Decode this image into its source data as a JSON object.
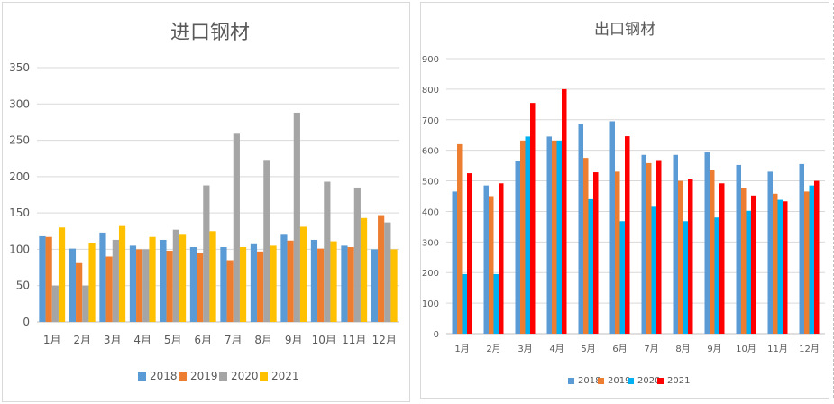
{
  "colors": {
    "2018": "#5b9bd5",
    "2019": "#ed7d31",
    "2020_left": "#a5a5a5",
    "2021_left": "#ffc000",
    "2020_right": "#00b0f0",
    "2021_right": "#ff0000"
  },
  "chart_data": [
    {
      "type": "bar",
      "title": "进口钢材",
      "categories": [
        "1月",
        "2月",
        "3月",
        "4月",
        "5月",
        "6月",
        "7月",
        "8月",
        "9月",
        "10月",
        "11月",
        "12月"
      ],
      "ylim": [
        0,
        350
      ],
      "yticks": [
        "0",
        "50",
        "100",
        "150",
        "200",
        "250",
        "300",
        "350"
      ],
      "grid": true,
      "legend_position": "bottom",
      "series": [
        {
          "name": "2018",
          "values": [
            118,
            101,
            123,
            105,
            113,
            103,
            103,
            107,
            120,
            113,
            105,
            100
          ]
        },
        {
          "name": "2019",
          "values": [
            117,
            81,
            90,
            100,
            98,
            95,
            85,
            97,
            112,
            101,
            103,
            147
          ]
        },
        {
          "name": "2020",
          "values": [
            50,
            50,
            113,
            100,
            127,
            188,
            259,
            223,
            288,
            193,
            185,
            137
          ]
        },
        {
          "name": "2021",
          "values": [
            130,
            108,
            132,
            117,
            120,
            125,
            103,
            105,
            131,
            111,
            143,
            100
          ]
        }
      ]
    },
    {
      "type": "bar",
      "title": "出口钢材",
      "categories": [
        "1月",
        "2月",
        "3月",
        "4月",
        "5月",
        "6月",
        "7月",
        "8月",
        "9月",
        "10月",
        "11月",
        "12月"
      ],
      "ylim": [
        0,
        900
      ],
      "yticks": [
        "0",
        "100",
        "200",
        "300",
        "400",
        "500",
        "600",
        "700",
        "800",
        "900"
      ],
      "grid": true,
      "legend_position": "bottom",
      "series": [
        {
          "name": "2018",
          "values": [
            465,
            485,
            565,
            645,
            685,
            695,
            585,
            585,
            593,
            552,
            530,
            555
          ]
        },
        {
          "name": "2019",
          "values": [
            620,
            450,
            632,
            632,
            575,
            530,
            558,
            500,
            535,
            478,
            458,
            465
          ]
        },
        {
          "name": "2020",
          "values": [
            195,
            195,
            645,
            632,
            440,
            368,
            418,
            368,
            380,
            402,
            438,
            485
          ]
        },
        {
          "name": "2021",
          "values": [
            525,
            492,
            755,
            800,
            528,
            646,
            568,
            505,
            492,
            452,
            433,
            500
          ]
        }
      ]
    }
  ]
}
